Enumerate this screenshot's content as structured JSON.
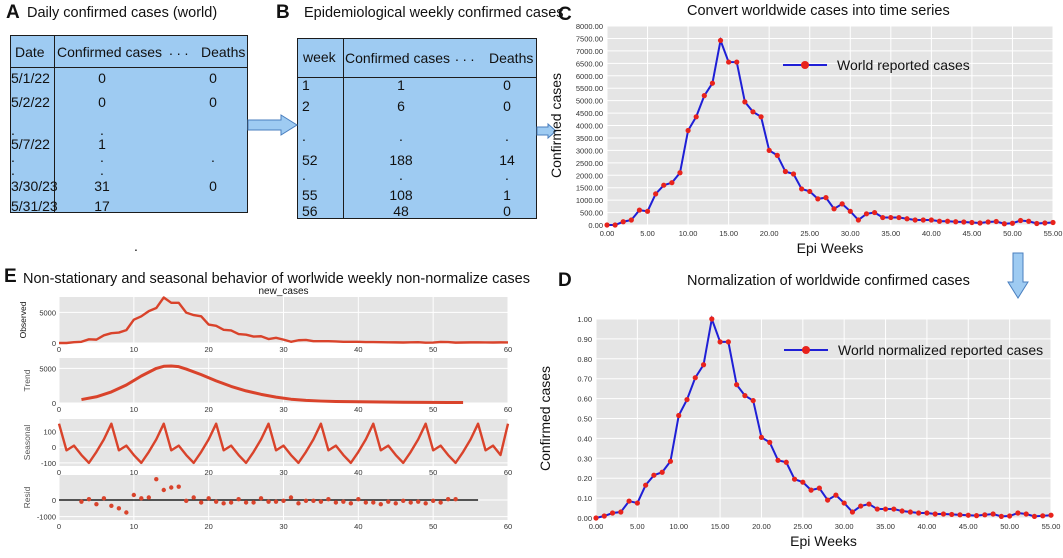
{
  "panels": {
    "A": {
      "label": "A",
      "title": "Daily confirmed cases (world)"
    },
    "B": {
      "label": "B",
      "title": "Epidemiological weekly confirmed cases"
    },
    "C": {
      "label": "C",
      "title": "Convert worldwide cases into time series"
    },
    "D": {
      "label": "D",
      "title": "Normalization of worldwide confirmed cases"
    },
    "E": {
      "label": "E",
      "title": "Non-stationary and seasonal behavior of  worlwide weekly non-normalize cases"
    }
  },
  "table_a": {
    "headers": [
      "Date",
      "Confirmed cases",
      ". . .",
      "Deaths"
    ],
    "rows": [
      {
        "date": "5/1/22",
        "confirmed": "0",
        "deaths": "0"
      },
      {
        "date": "5/2/22",
        "confirmed": "0",
        "deaths": "0"
      },
      {
        "date": ".",
        "confirmed": ".",
        "deaths": ""
      },
      {
        "date": "5/7/22",
        "confirmed": "1",
        "deaths": ""
      },
      {
        "date": ".",
        "confirmed": ".",
        "deaths": "."
      },
      {
        "date": ".",
        "confirmed": ".",
        "deaths": ""
      },
      {
        "date": "3/30/23",
        "confirmed": "31",
        "deaths": "0"
      },
      {
        "date": "5/31/23",
        "confirmed": "17",
        "deaths": ""
      }
    ]
  },
  "table_b": {
    "headers": [
      "week",
      "Confirmed cases",
      ". . .",
      "Deaths"
    ],
    "rows": [
      {
        "week": "1",
        "confirmed": "1",
        "deaths": "0"
      },
      {
        "week": "2",
        "confirmed": "6",
        "deaths": "0"
      },
      {
        "week": ".",
        "confirmed": ".",
        "deaths": "."
      },
      {
        "week": "52",
        "confirmed": "188",
        "deaths": "14"
      },
      {
        "week": ".",
        "confirmed": ".",
        "deaths": "."
      },
      {
        "week": "55",
        "confirmed": "108",
        "deaths": "1"
      },
      {
        "week": "56",
        "confirmed": "48",
        "deaths": "0"
      }
    ]
  },
  "stray_dot": ".",
  "colors": {
    "table_fill": "#9ecbf2",
    "arrow_fill": "#9ecbf2",
    "line_blue": "#1f1fd6",
    "marker_red": "#e8231c",
    "decomp_red": "#d9432b",
    "plot_bg": "#e5e5e5"
  },
  "chart_data": [
    {
      "id": "C",
      "type": "line",
      "title": "Convert worldwide cases into time series",
      "xlabel": "Epi  Weeks",
      "ylabel": "Confirmed cases",
      "legend": "World reported cases",
      "legend_position": "top-right",
      "xlim": [
        0,
        55
      ],
      "ylim": [
        0,
        8000
      ],
      "xticks": [
        "0.00",
        "5.00",
        "10.00",
        "15.00",
        "20.00",
        "25.00",
        "30.00",
        "35.00",
        "40.00",
        "45.00",
        "50.00",
        "55.00"
      ],
      "yticks": [
        "0.00",
        "500.00",
        "1000.00",
        "1500.00",
        "2000.00",
        "2500.00",
        "3000.00",
        "3500.00",
        "4000.00",
        "4500.00",
        "5000.00",
        "5500.00",
        "6000.00",
        "6500.00",
        "7000.00",
        "7500.00",
        "8000.00"
      ],
      "x": [
        0,
        1,
        2,
        3,
        4,
        5,
        6,
        7,
        8,
        9,
        10,
        11,
        12,
        13,
        14,
        15,
        16,
        17,
        18,
        19,
        20,
        21,
        22,
        23,
        24,
        25,
        26,
        27,
        28,
        29,
        30,
        31,
        32,
        33,
        34,
        35,
        36,
        37,
        38,
        39,
        40,
        41,
        42,
        43,
        44,
        45,
        46,
        47,
        48,
        49,
        50,
        51,
        52,
        53,
        54,
        55
      ],
      "values": [
        0,
        0,
        130,
        200,
        600,
        550,
        1250,
        1600,
        1700,
        2100,
        3800,
        4350,
        5200,
        5700,
        7420,
        6550,
        6550,
        4950,
        4550,
        4350,
        3000,
        2800,
        2150,
        2050,
        1450,
        1350,
        1050,
        1100,
        650,
        850,
        550,
        200,
        450,
        500,
        300,
        300,
        300,
        250,
        200,
        200,
        200,
        150,
        150,
        130,
        120,
        100,
        80,
        120,
        140,
        50,
        70,
        180,
        150,
        60,
        80,
        100
      ]
    },
    {
      "id": "D",
      "type": "line",
      "title": "Normalization of worldwide confirmed cases",
      "xlabel": "Epi  Weeks",
      "ylabel": "Confirmed cases",
      "legend": "World normalized reported cases",
      "legend_position": "top-right",
      "xlim": [
        0,
        55
      ],
      "ylim": [
        0,
        1.0
      ],
      "xticks": [
        "0.00",
        "5.00",
        "10.00",
        "15.00",
        "20.00",
        "25.00",
        "30.00",
        "35.00",
        "40.00",
        "45.00",
        "50.00",
        "55.00"
      ],
      "yticks": [
        "0.00",
        "0.10",
        "0.20",
        "0.30",
        "0.40",
        "0.50",
        "0.60",
        "0.70",
        "0.80",
        "0.90",
        "1.00"
      ],
      "x": [
        0,
        1,
        2,
        3,
        4,
        5,
        6,
        7,
        8,
        9,
        10,
        11,
        12,
        13,
        14,
        15,
        16,
        17,
        18,
        19,
        20,
        21,
        22,
        23,
        24,
        25,
        26,
        27,
        28,
        29,
        30,
        31,
        32,
        33,
        34,
        35,
        36,
        37,
        38,
        39,
        40,
        41,
        42,
        43,
        44,
        45,
        46,
        47,
        48,
        49,
        50,
        51,
        52,
        53,
        54,
        55
      ],
      "values": [
        0,
        0.01,
        0.025,
        0.03,
        0.085,
        0.075,
        0.165,
        0.215,
        0.23,
        0.285,
        0.515,
        0.595,
        0.705,
        0.77,
        1.0,
        0.885,
        0.885,
        0.67,
        0.615,
        0.59,
        0.405,
        0.38,
        0.29,
        0.28,
        0.195,
        0.18,
        0.14,
        0.15,
        0.09,
        0.115,
        0.075,
        0.03,
        0.06,
        0.07,
        0.045,
        0.045,
        0.045,
        0.035,
        0.03,
        0.025,
        0.025,
        0.02,
        0.02,
        0.018,
        0.016,
        0.014,
        0.012,
        0.016,
        0.02,
        0.008,
        0.01,
        0.025,
        0.02,
        0.008,
        0.011,
        0.014
      ]
    },
    {
      "id": "E",
      "type": "line",
      "title": "new_cases",
      "xlim": [
        0,
        60
      ],
      "xticks": [
        "0",
        "10",
        "20",
        "30",
        "40",
        "50",
        "60"
      ],
      "subplots": [
        {
          "name": "Observed",
          "ylim": [
            0,
            7500
          ],
          "yticks": [
            "0",
            "5000"
          ],
          "x": [
            0,
            1,
            2,
            3,
            4,
            5,
            6,
            7,
            8,
            9,
            10,
            11,
            12,
            13,
            14,
            15,
            16,
            17,
            18,
            19,
            20,
            21,
            22,
            23,
            24,
            25,
            26,
            27,
            28,
            29,
            30,
            31,
            32,
            33,
            34,
            35,
            36,
            37,
            38,
            39,
            40,
            41,
            42,
            43,
            44,
            45,
            46,
            47,
            48,
            49,
            50,
            51,
            52,
            53,
            54,
            55,
            56,
            57,
            58,
            59,
            60
          ],
          "values": [
            0,
            0,
            130,
            200,
            600,
            550,
            1250,
            1600,
            1700,
            2100,
            3800,
            4350,
            5200,
            5700,
            7420,
            6550,
            6550,
            4950,
            4550,
            4350,
            3000,
            2800,
            2150,
            2050,
            1450,
            1350,
            1050,
            1100,
            650,
            850,
            550,
            200,
            450,
            500,
            300,
            300,
            300,
            250,
            200,
            200,
            200,
            150,
            150,
            130,
            120,
            100,
            80,
            120,
            140,
            50,
            70,
            180,
            150,
            60,
            80,
            100,
            120,
            90,
            80,
            100,
            90
          ]
        },
        {
          "name": "Trend",
          "ylim": [
            0,
            6500
          ],
          "yticks": [
            "0",
            "5000"
          ],
          "x": [
            3,
            5,
            7,
            9,
            11,
            13,
            14,
            15,
            16,
            17,
            19,
            21,
            23,
            25,
            27,
            29,
            31,
            33,
            35,
            37,
            40,
            43,
            46,
            49,
            52,
            54
          ],
          "values": [
            500,
            900,
            1600,
            2600,
            3900,
            5000,
            5300,
            5350,
            5250,
            4900,
            4100,
            3200,
            2400,
            1750,
            1250,
            850,
            550,
            380,
            280,
            220,
            180,
            140,
            110,
            90,
            80,
            70
          ]
        },
        {
          "name": "Seasonal",
          "ylim": [
            -120,
            180
          ],
          "yticks": [
            "-100",
            "0",
            "100"
          ],
          "x": [
            0,
            1,
            2,
            3,
            4,
            5,
            6,
            7,
            8,
            9,
            10,
            11,
            12,
            13,
            14,
            15,
            16,
            17,
            18,
            19,
            20,
            21,
            22,
            23,
            24,
            25,
            26,
            27,
            28,
            29,
            30,
            31,
            32,
            33,
            34,
            35,
            36,
            37,
            38,
            39,
            40,
            41,
            42,
            43,
            44,
            45,
            46,
            47,
            48,
            49,
            50,
            51,
            52,
            53,
            54,
            55,
            56,
            57,
            58,
            59,
            60
          ],
          "values": [
            150,
            -20,
            10,
            -50,
            -100,
            -30,
            50,
            150,
            -20,
            10,
            -50,
            -100,
            -30,
            50,
            150,
            -20,
            10,
            -50,
            -100,
            -30,
            50,
            150,
            -20,
            10,
            -50,
            -100,
            -30,
            50,
            150,
            -20,
            10,
            -50,
            -100,
            -30,
            50,
            150,
            -20,
            10,
            -50,
            -100,
            -30,
            50,
            150,
            -20,
            10,
            -50,
            -100,
            -30,
            50,
            150,
            -20,
            10,
            -50,
            -100,
            -30,
            50,
            150,
            -20,
            10,
            -50,
            150
          ]
        },
        {
          "name": "Resid",
          "ylim": [
            -1200,
            1500
          ],
          "yticks": [
            "0",
            "-1000"
          ],
          "x": [
            3,
            4,
            5,
            6,
            7,
            8,
            9,
            10,
            11,
            12,
            13,
            14,
            15,
            16,
            17,
            18,
            19,
            20,
            21,
            22,
            23,
            24,
            25,
            26,
            27,
            28,
            29,
            30,
            31,
            32,
            33,
            34,
            35,
            36,
            37,
            38,
            39,
            40,
            41,
            42,
            43,
            44,
            45,
            46,
            47,
            48,
            49,
            50,
            51,
            52,
            53
          ],
          "values": [
            -100,
            50,
            -250,
            100,
            -350,
            -500,
            -750,
            300,
            100,
            150,
            1250,
            600,
            750,
            800,
            -50,
            150,
            -150,
            100,
            -100,
            -200,
            -150,
            50,
            -150,
            -150,
            100,
            -100,
            -100,
            -50,
            150,
            -200,
            -50,
            -50,
            -100,
            50,
            -150,
            -100,
            -200,
            50,
            -150,
            -150,
            -250,
            -100,
            -200,
            -50,
            -150,
            -100,
            -200,
            -50,
            -150,
            50,
            50
          ]
        }
      ]
    }
  ]
}
